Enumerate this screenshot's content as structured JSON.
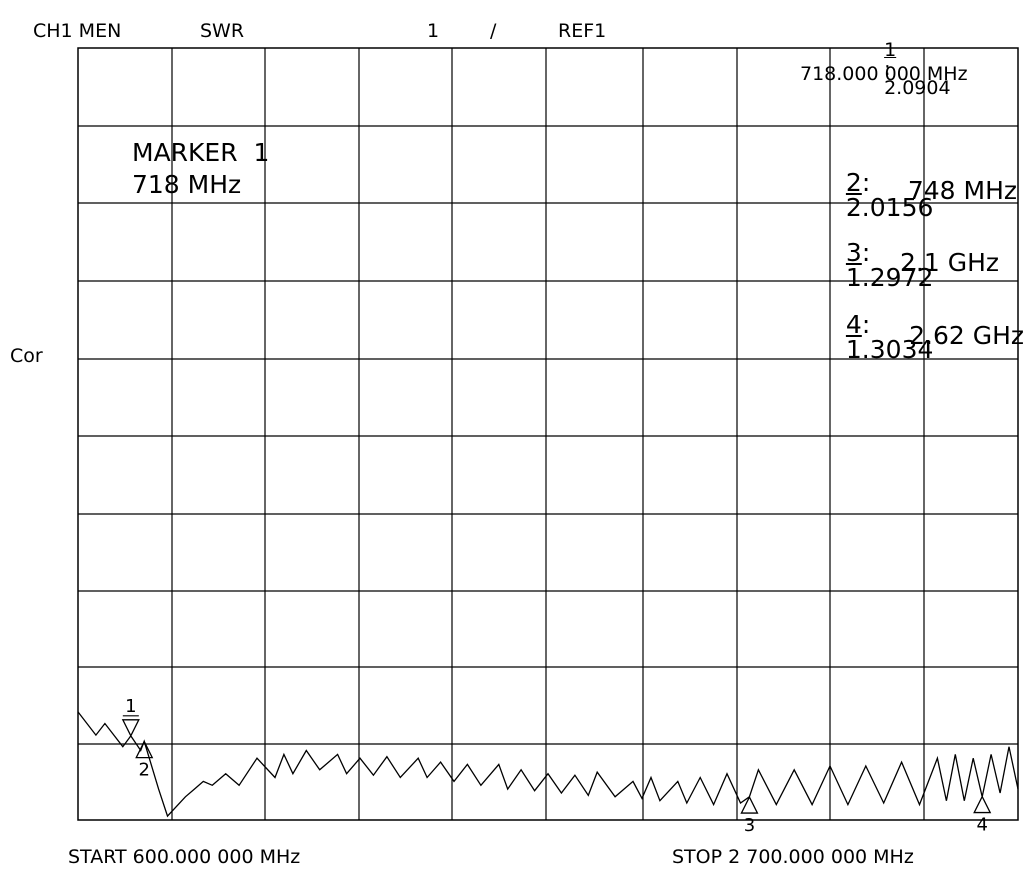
{
  "header": {
    "channel": "CH1 MEN",
    "format": "SWR",
    "scale": "1",
    "slash": "/",
    "reference": "REF1",
    "active_marker_num": "1",
    "active_marker_sep": ":",
    "active_marker_value": "2.0904",
    "active_marker_freq": "718.000 000 MHz"
  },
  "side": {
    "correction": "Cor"
  },
  "marker_box": {
    "title": "MARKER  1",
    "freq": "718 MHz"
  },
  "markers_panel": [
    {
      "num": "2",
      "sep": ":",
      "value": "2.0156",
      "freq": "748 MHz"
    },
    {
      "num": "3",
      "sep": ":",
      "value": "1.2972",
      "freq": "2.1 GHz"
    },
    {
      "num": "4",
      "sep": ":",
      "value": "1.3034",
      "freq": "2.62 GHz"
    }
  ],
  "footer": {
    "start": "START 600.000 000 MHz",
    "stop": "STOP 2 700.000 000 MHz"
  },
  "chart_data": {
    "type": "line",
    "xlabel": "",
    "ylabel": "",
    "x_unit": "MHz",
    "xlim": [
      600,
      2700
    ],
    "ylim": [
      1,
      11
    ],
    "reference_level": 1,
    "scale_per_div": 1,
    "grid": true,
    "series": [
      {
        "x": [
          600,
          640,
          660,
          700,
          718,
          740,
          748,
          780,
          800,
          840,
          860,
          880,
          900,
          930,
          960,
          1000,
          1040,
          1060,
          1080,
          1110,
          1140,
          1180,
          1200,
          1230,
          1260,
          1290,
          1320,
          1360,
          1380,
          1410,
          1440,
          1470,
          1500,
          1540,
          1560,
          1590,
          1620,
          1650,
          1680,
          1710,
          1740,
          1760,
          1800,
          1840,
          1860,
          1880,
          1900,
          1940,
          1960,
          1990,
          2020,
          2050,
          2080,
          2100,
          2120,
          2160,
          2200,
          2240,
          2280,
          2320,
          2360,
          2400,
          2440,
          2480,
          2520,
          2540,
          2560,
          2580,
          2600,
          2620,
          2640,
          2660,
          2680,
          2700
        ],
        "y": [
          2.4,
          2.1,
          2.25,
          1.95,
          2.09,
          1.9,
          2.02,
          1.4,
          1.05,
          1.3,
          1.4,
          1.5,
          1.45,
          1.6,
          1.45,
          1.8,
          1.55,
          1.85,
          1.6,
          1.9,
          1.65,
          1.85,
          1.6,
          1.8,
          1.58,
          1.82,
          1.55,
          1.8,
          1.55,
          1.75,
          1.5,
          1.72,
          1.45,
          1.72,
          1.4,
          1.65,
          1.38,
          1.6,
          1.35,
          1.58,
          1.32,
          1.62,
          1.3,
          1.5,
          1.28,
          1.55,
          1.25,
          1.5,
          1.22,
          1.55,
          1.2,
          1.6,
          1.22,
          1.3,
          1.65,
          1.2,
          1.65,
          1.2,
          1.7,
          1.2,
          1.7,
          1.22,
          1.75,
          1.2,
          1.8,
          1.25,
          1.85,
          1.25,
          1.8,
          1.3,
          1.85,
          1.35,
          1.95,
          1.4
        ]
      }
    ],
    "markers": [
      {
        "id": "1",
        "x": 718,
        "y": 2.0904,
        "direction": "down"
      },
      {
        "id": "2",
        "x": 748,
        "y": 2.0156,
        "direction": "up"
      },
      {
        "id": "3",
        "x": 2100,
        "y": 1.2972,
        "direction": "up"
      },
      {
        "id": "4",
        "x": 2620,
        "y": 1.3034,
        "direction": "up"
      }
    ]
  }
}
